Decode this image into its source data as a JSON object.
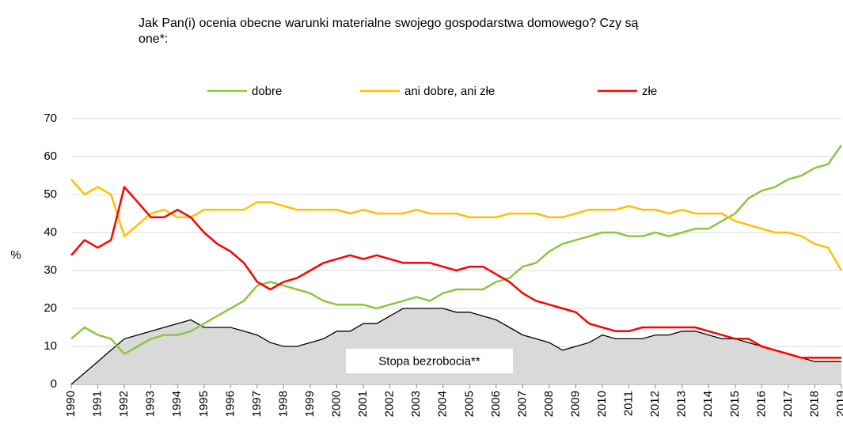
{
  "chart_data": {
    "type": "line",
    "title": "Jak Pan(i) ocenia obecne warunki materialne swojego gospodarstwa domowego? Czy są one*:",
    "ylabel": "%",
    "xlim": [
      1990,
      2019
    ],
    "xticks": [
      1990,
      1991,
      1992,
      1993,
      1994,
      1995,
      1996,
      1997,
      1998,
      1999,
      2000,
      2001,
      2002,
      2003,
      2004,
      2005,
      2006,
      2007,
      2008,
      2009,
      2010,
      2011,
      2012,
      2013,
      2014,
      2015,
      2016,
      2017,
      2018,
      2019
    ],
    "ylim": [
      0,
      70
    ],
    "yticks": [
      0,
      10,
      20,
      30,
      40,
      50,
      60,
      70
    ],
    "grid": true,
    "legend": "top",
    "x": [
      1990,
      1990.5,
      1991,
      1991.5,
      1992,
      1992.5,
      1993,
      1993.5,
      1994,
      1994.5,
      1995,
      1995.5,
      1996,
      1996.5,
      1997,
      1997.5,
      1998,
      1998.5,
      1999,
      1999.5,
      2000,
      2000.5,
      2001,
      2001.5,
      2002,
      2002.5,
      2003,
      2003.5,
      2004,
      2004.5,
      2005,
      2005.5,
      2006,
      2006.5,
      2007,
      2007.5,
      2008,
      2008.5,
      2009,
      2009.5,
      2010,
      2010.5,
      2011,
      2011.5,
      2012,
      2012.5,
      2013,
      2013.5,
      2014,
      2014.5,
      2015,
      2015.5,
      2016,
      2016.5,
      2017,
      2017.5,
      2018,
      2018.5,
      2019
    ],
    "area": {
      "name": "Stopa bezrobocia**",
      "color": "#d9d9d9",
      "line_color": "#000000",
      "values": [
        0,
        3,
        6,
        9,
        12,
        13,
        14,
        15,
        16,
        17,
        15,
        15,
        15,
        14,
        13,
        11,
        10,
        10,
        11,
        12,
        14,
        14,
        16,
        16,
        18,
        20,
        20,
        20,
        20,
        19,
        19,
        18,
        17,
        15,
        13,
        12,
        11,
        9,
        10,
        11,
        13,
        12,
        12,
        12,
        13,
        13,
        14,
        14,
        13,
        12,
        12,
        11,
        10,
        9,
        8,
        7,
        6,
        6,
        6
      ]
    },
    "series": [
      {
        "name": "dobre",
        "color": "#8dc63f",
        "values": [
          12,
          15,
          13,
          12,
          8,
          10,
          12,
          13,
          13,
          14,
          16,
          18,
          20,
          22,
          26,
          27,
          26,
          25,
          24,
          22,
          21,
          21,
          21,
          20,
          21,
          22,
          23,
          22,
          24,
          25,
          25,
          25,
          27,
          28,
          31,
          32,
          35,
          37,
          38,
          39,
          40,
          40,
          39,
          39,
          40,
          39,
          40,
          41,
          41,
          43,
          45,
          49,
          51,
          52,
          54,
          55,
          57,
          58,
          63
        ]
      },
      {
        "name": "ani dobre, ani złe",
        "color": "#ffc000",
        "values": [
          54,
          50,
          52,
          50,
          39,
          42,
          45,
          46,
          44,
          44,
          46,
          46,
          46,
          46,
          48,
          48,
          47,
          46,
          46,
          46,
          46,
          45,
          46,
          45,
          45,
          45,
          46,
          45,
          45,
          45,
          44,
          44,
          44,
          45,
          45,
          45,
          44,
          44,
          45,
          46,
          46,
          46,
          47,
          46,
          46,
          45,
          46,
          45,
          45,
          45,
          43,
          42,
          41,
          40,
          40,
          39,
          37,
          36,
          30
        ]
      },
      {
        "name": "złe",
        "color": "#ff0000",
        "values": [
          34,
          38,
          36,
          38,
          52,
          48,
          44,
          44,
          46,
          44,
          40,
          37,
          35,
          32,
          27,
          25,
          27,
          28,
          30,
          32,
          33,
          34,
          33,
          34,
          33,
          32,
          32,
          32,
          31,
          30,
          31,
          31,
          29,
          27,
          24,
          22,
          21,
          20,
          19,
          16,
          15,
          14,
          14,
          15,
          15,
          15,
          15,
          15,
          14,
          13,
          12,
          12,
          10,
          9,
          8,
          7,
          7,
          7,
          7
        ]
      }
    ]
  }
}
